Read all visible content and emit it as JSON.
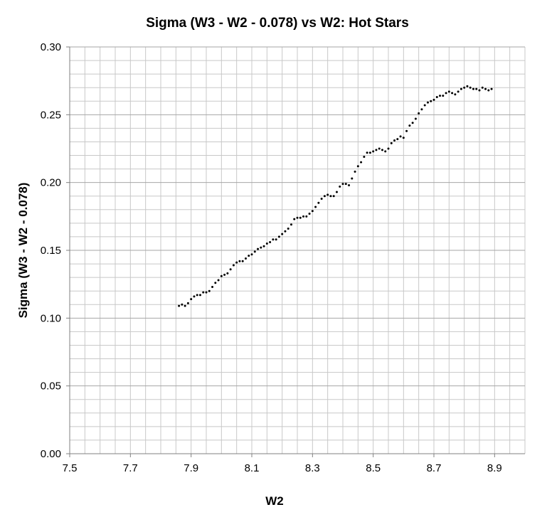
{
  "chart_data": {
    "type": "scatter",
    "title": "Sigma (W3 - W2 - 0.078) vs W2: Hot Stars",
    "xlabel": "W2",
    "ylabel": "Sigma (W3 - W2 - 0.078)",
    "xlim": [
      7.5,
      9.0
    ],
    "ylim": [
      0.0,
      0.3
    ],
    "x_ticks": [
      "7.5",
      "7.7",
      "7.9",
      "8.1",
      "8.3",
      "8.5",
      "8.7",
      "8.9"
    ],
    "y_ticks": [
      "0.00",
      "0.05",
      "0.10",
      "0.15",
      "0.20",
      "0.25",
      "0.30"
    ],
    "grid": true,
    "legend": "none",
    "marker_color": "#000000",
    "series": [
      {
        "x": [
          7.86,
          7.87,
          7.88,
          7.89,
          7.9,
          7.91,
          7.92,
          7.93,
          7.94,
          7.95,
          7.96,
          7.97,
          7.98,
          7.99,
          8.0,
          8.01,
          8.02,
          8.03,
          8.04,
          8.05,
          8.06,
          8.07,
          8.08,
          8.09,
          8.1,
          8.11,
          8.12,
          8.13,
          8.14,
          8.15,
          8.16,
          8.17,
          8.18,
          8.19,
          8.2,
          8.21,
          8.22,
          8.23,
          8.24,
          8.25,
          8.26,
          8.27,
          8.28,
          8.29,
          8.3,
          8.31,
          8.32,
          8.33,
          8.34,
          8.35,
          8.36,
          8.37,
          8.38,
          8.39,
          8.4,
          8.41,
          8.42,
          8.43,
          8.44,
          8.45,
          8.46,
          8.47,
          8.48,
          8.49,
          8.5,
          8.51,
          8.52,
          8.53,
          8.54,
          8.55,
          8.56,
          8.57,
          8.58,
          8.59,
          8.6,
          8.61,
          8.62,
          8.63,
          8.64,
          8.65,
          8.66,
          8.67,
          8.68,
          8.69,
          8.7,
          8.71,
          8.72,
          8.73,
          8.74,
          8.75,
          8.76,
          8.77,
          8.78,
          8.79,
          8.8,
          8.81,
          8.82,
          8.83,
          8.84,
          8.85,
          8.86,
          8.87,
          8.88,
          8.89
        ],
        "y": [
          0.109,
          0.11,
          0.109,
          0.111,
          0.114,
          0.116,
          0.117,
          0.117,
          0.119,
          0.119,
          0.12,
          0.123,
          0.126,
          0.128,
          0.131,
          0.132,
          0.133,
          0.136,
          0.139,
          0.141,
          0.142,
          0.142,
          0.144,
          0.146,
          0.147,
          0.149,
          0.151,
          0.152,
          0.153,
          0.155,
          0.156,
          0.158,
          0.158,
          0.16,
          0.162,
          0.164,
          0.166,
          0.169,
          0.173,
          0.174,
          0.174,
          0.175,
          0.175,
          0.177,
          0.179,
          0.182,
          0.185,
          0.188,
          0.19,
          0.191,
          0.19,
          0.19,
          0.193,
          0.197,
          0.199,
          0.199,
          0.198,
          0.203,
          0.208,
          0.212,
          0.215,
          0.219,
          0.222,
          0.222,
          0.223,
          0.224,
          0.225,
          0.224,
          0.223,
          0.225,
          0.229,
          0.231,
          0.232,
          0.234,
          0.233,
          0.238,
          0.242,
          0.244,
          0.247,
          0.251,
          0.254,
          0.257,
          0.259,
          0.26,
          0.261,
          0.263,
          0.264,
          0.264,
          0.266,
          0.267,
          0.266,
          0.265,
          0.267,
          0.269,
          0.27,
          0.271,
          0.27,
          0.269,
          0.269,
          0.268,
          0.27,
          0.269,
          0.268,
          0.269
        ]
      }
    ]
  }
}
